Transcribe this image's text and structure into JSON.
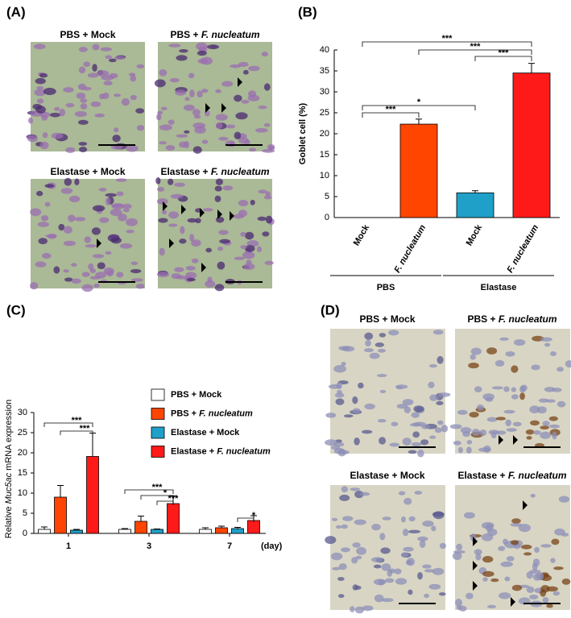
{
  "panel_labels": [
    "(A)",
    "(B)",
    "(C)",
    "(D)"
  ],
  "panel_a": {
    "captions": [
      "PBS + Mock",
      "PBS + F. nucleatum",
      "Elastase + Mock",
      "Elastase + F. nucleatum"
    ]
  },
  "panel_d": {
    "captions": [
      "PBS + Mock",
      "PBS + F. nucleatum",
      "Elastase + Mock",
      "Elastase + F. nucleatum"
    ]
  },
  "chart_data": [
    {
      "type": "bar",
      "ylabel": "Goblet cell (%)",
      "categories": [
        "Mock",
        "F. nucleatum",
        "Mock",
        "F. nucleatum"
      ],
      "groups": [
        "PBS",
        "Elastase"
      ],
      "values": [
        0,
        22.3,
        5.9,
        34.5
      ],
      "errors": [
        0,
        1.2,
        0.5,
        2.3
      ],
      "colors": [
        "#ffffff",
        "#ff4500",
        "#1fa0c8",
        "#ff1a1a"
      ],
      "ylim": [
        0,
        40
      ],
      "yticks": [
        0,
        5,
        10,
        15,
        20,
        25,
        30,
        35,
        40
      ],
      "significance": [
        {
          "between": [
            0,
            1
          ],
          "label": "***"
        },
        {
          "between": [
            0,
            2
          ],
          "label": "*"
        },
        {
          "between": [
            0,
            3
          ],
          "label": "***"
        },
        {
          "between": [
            1,
            3
          ],
          "label": "***"
        },
        {
          "between": [
            2,
            3
          ],
          "label": "***"
        }
      ]
    },
    {
      "type": "grouped_bar",
      "ylabel": "Relative Muc5ac mRNA expression",
      "xlabel": "(day)",
      "categories": [
        "1",
        "3",
        "7"
      ],
      "series": [
        {
          "name": "PBS + Mock",
          "color": "#ffffff",
          "values": [
            1.0,
            1.0,
            1.0
          ],
          "errors": [
            0.6,
            0.2,
            0.4
          ]
        },
        {
          "name": "PBS + F. nucleatum",
          "color": "#ff4500",
          "values": [
            9.0,
            3.0,
            1.4
          ],
          "errors": [
            2.9,
            1.3,
            0.4
          ]
        },
        {
          "name": "Elastase + Mock",
          "color": "#1fa0c8",
          "values": [
            0.8,
            1.0,
            1.2
          ],
          "errors": [
            0.2,
            0.1,
            0.3
          ]
        },
        {
          "name": "Elastase + F. nucleatum",
          "color": "#ff1a1a",
          "values": [
            19.1,
            7.4,
            3.2
          ],
          "errors": [
            5.8,
            1.9,
            1.2
          ]
        }
      ],
      "ylim": [
        0,
        30
      ],
      "yticks": [
        0,
        5,
        10,
        15,
        20,
        25,
        30
      ],
      "significance": [
        {
          "category": 0,
          "between": [
            0,
            3
          ],
          "label": "***"
        },
        {
          "category": 0,
          "between": [
            1,
            3
          ],
          "label": "***"
        },
        {
          "category": 1,
          "between": [
            0,
            3
          ],
          "label": "***"
        },
        {
          "category": 1,
          "between": [
            1,
            3
          ],
          "label": "*"
        },
        {
          "category": 1,
          "between": [
            2,
            3
          ],
          "label": "***"
        },
        {
          "category": 2,
          "between": [
            2,
            3
          ],
          "label": "*"
        }
      ]
    }
  ]
}
